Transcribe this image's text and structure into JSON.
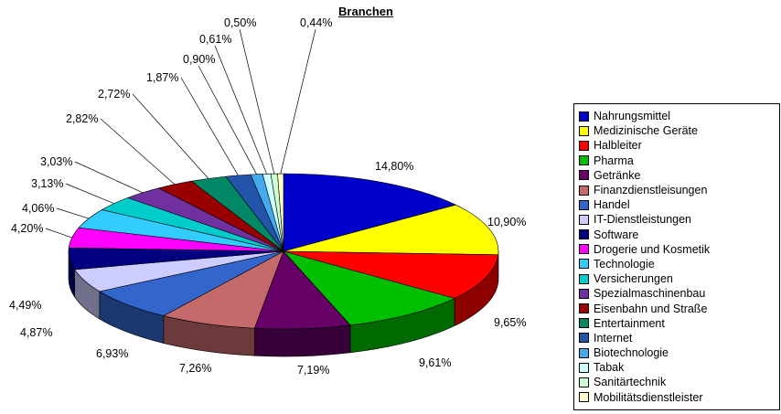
{
  "chart_data": {
    "type": "pie",
    "title": "Branchen",
    "effect": "3d",
    "start_angle": "top",
    "direction": "clockwise",
    "legend_position": "right",
    "background": "#ffffff",
    "slices": [
      {
        "label": "Nahrungsmittel",
        "value": 14.8,
        "display": "14,80%",
        "color": "#0000CC"
      },
      {
        "label": "Medizinische Geräte",
        "value": 10.9,
        "display": "10,90%",
        "color": "#FFFF00"
      },
      {
        "label": "Halbleiter",
        "value": 9.65,
        "display": "9,65%",
        "color": "#FF0000"
      },
      {
        "label": "Pharma",
        "value": 9.61,
        "display": "9,61%",
        "color": "#00BF00"
      },
      {
        "label": "Getränke",
        "value": 7.19,
        "display": "7,19%",
        "color": "#660066"
      },
      {
        "label": "Finanzdienstleisungen",
        "value": 7.26,
        "display": "7,26%",
        "color": "#C46A6A"
      },
      {
        "label": "Handel",
        "value": 6.93,
        "display": "6,93%",
        "color": "#3366CC"
      },
      {
        "label": "IT-Dienstleistungen",
        "value": 4.87,
        "display": "4,87%",
        "color": "#CCCCFF"
      },
      {
        "label": "Software",
        "value": 4.49,
        "display": "4,49%",
        "color": "#000080"
      },
      {
        "label": "Drogerie und Kosmetik",
        "value": 4.2,
        "display": "4,20%",
        "color": "#FF00FF"
      },
      {
        "label": "Technologie",
        "value": 4.06,
        "display": "4,06%",
        "color": "#33CCFF"
      },
      {
        "label": "Versicherungen",
        "value": 3.13,
        "display": "3,13%",
        "color": "#00CCCC"
      },
      {
        "label": "Spezialmaschinenbau",
        "value": 3.03,
        "display": "3,03%",
        "color": "#7030A0"
      },
      {
        "label": "Eisenbahn und Straße",
        "value": 2.82,
        "display": "2,82%",
        "color": "#990000"
      },
      {
        "label": "Entertainment",
        "value": 2.72,
        "display": "2,72%",
        "color": "#008866"
      },
      {
        "label": "Internet",
        "value": 1.87,
        "display": "1,87%",
        "color": "#2255AA"
      },
      {
        "label": "Biotechnologie",
        "value": 0.9,
        "display": "0,90%",
        "color": "#44AAEE"
      },
      {
        "label": "Tabak",
        "value": 0.61,
        "display": "0,61%",
        "color": "#CCFFFF"
      },
      {
        "label": "Sanitärtechnik",
        "value": 0.5,
        "display": "0,50%",
        "color": "#CCFFCC"
      },
      {
        "label": "Mobilitätsdienstleister",
        "value": 0.44,
        "display": "0,44%",
        "color": "#FFFFCC"
      }
    ]
  }
}
